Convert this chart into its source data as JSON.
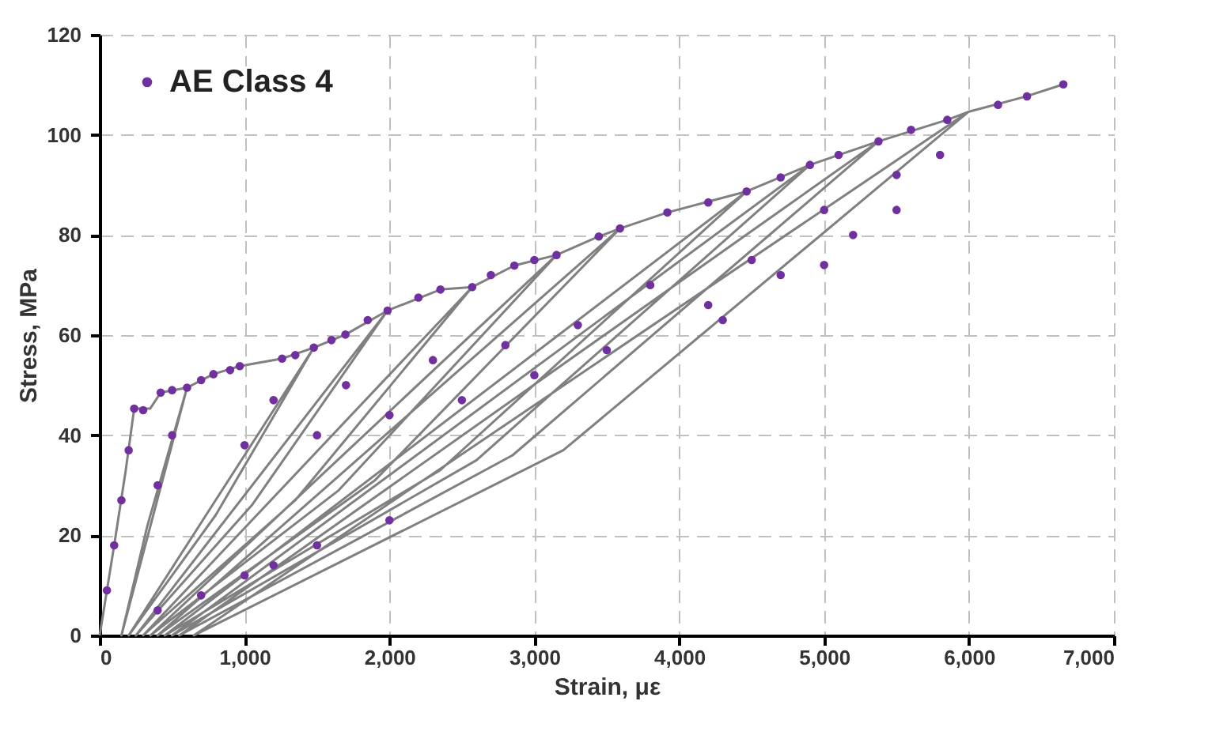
{
  "chart_data": {
    "type": "scatter",
    "xlabel": "Strain, με",
    "ylabel": "Stress, MPa",
    "xlim": [
      0,
      7000
    ],
    "ylim": [
      0,
      120
    ],
    "xticks": [
      0,
      {
        "value": 1000,
        "label": "1,000"
      },
      {
        "value": 2000,
        "label": "2,000"
      },
      {
        "value": 3000,
        "label": "3,000"
      },
      {
        "value": 4000,
        "label": "4,000"
      },
      {
        "value": 5000,
        "label": "5,000"
      },
      {
        "value": 6000,
        "label": "6,000"
      },
      {
        "value": 7000,
        "label": "7,000"
      }
    ],
    "yticks": [
      0,
      20,
      40,
      60,
      80,
      100,
      120
    ],
    "grid": true,
    "legend": "top left",
    "series": [
      {
        "type": "line",
        "color": "#808080",
        "x": [
          0,
          100,
          180,
          238,
          348,
          421,
          603,
          150,
          330,
          603,
          785,
          967,
          1259,
          1478,
          200,
          800,
          1478,
          1696,
          1987,
          250,
          1050,
          1987,
          2352,
          2571,
          300,
          1350,
          2571,
          2862,
          3153,
          350,
          1650,
          3153,
          3445,
          3591,
          400,
          1900,
          3591,
          3918,
          4465,
          450,
          2350,
          4465,
          4902,
          500,
          2600,
          4902,
          5375,
          550,
          2850,
          5375,
          5850,
          5995,
          650,
          3200,
          5995,
          6396,
          6651
        ],
        "values": [
          0,
          18,
          33,
          45.3,
          45.3,
          48.5,
          49.5,
          0,
          22,
          49.5,
          52.2,
          53.8,
          55.3,
          57.5,
          0,
          24,
          57.5,
          60.1,
          64.9,
          0,
          26,
          64.9,
          69.1,
          69.6,
          0,
          27,
          69.6,
          73.9,
          76,
          0,
          29,
          76,
          79.7,
          81.3,
          0,
          31,
          81.3,
          84.5,
          88.7,
          0,
          33,
          88.7,
          94,
          0,
          35,
          94,
          98.7,
          0,
          36,
          98.7,
          103,
          104.6,
          0,
          37,
          104.6,
          107.7,
          110.1
        ]
      },
      {
        "name": "AE Class 4",
        "marker": "circle",
        "color": "#7030a0",
        "x": [
          50,
          100,
          150,
          200,
          238,
          300,
          421,
          500,
          603,
          700,
          785,
          900,
          967,
          1259,
          1350,
          1478,
          1600,
          1696,
          1850,
          1987,
          2200,
          2352,
          2571,
          2700,
          2862,
          3000,
          3153,
          3445,
          3591,
          3918,
          4200,
          4465,
          4700,
          4902,
          5100,
          5375,
          5600,
          5850,
          6200,
          6400,
          6651,
          400,
          500,
          1000,
          1200,
          1500,
          1700,
          2000,
          2300,
          2500,
          2800,
          3000,
          3300,
          3500,
          3800,
          4200,
          4500,
          4700,
          5000,
          5200,
          5500,
          4300,
          5000,
          5500,
          5800,
          1000,
          1500,
          2000,
          700,
          1200,
          400
        ],
        "values": [
          9,
          18,
          27,
          37,
          45.3,
          45,
          48.5,
          49,
          49.5,
          51,
          52.2,
          53,
          53.8,
          55.3,
          56,
          57.5,
          59,
          60.1,
          63,
          64.9,
          67.5,
          69.1,
          69.6,
          72,
          73.9,
          75,
          76,
          79.7,
          81.3,
          84.5,
          86.5,
          88.7,
          91.5,
          94,
          96,
          98.7,
          101,
          103,
          106,
          107.7,
          110.1,
          30,
          40,
          38,
          47,
          40,
          50,
          44,
          55,
          47,
          58,
          52,
          62,
          57,
          70,
          66,
          75,
          72,
          85,
          80,
          92,
          63,
          74,
          85,
          96,
          12,
          18,
          23,
          8,
          14,
          5
        ]
      }
    ]
  }
}
